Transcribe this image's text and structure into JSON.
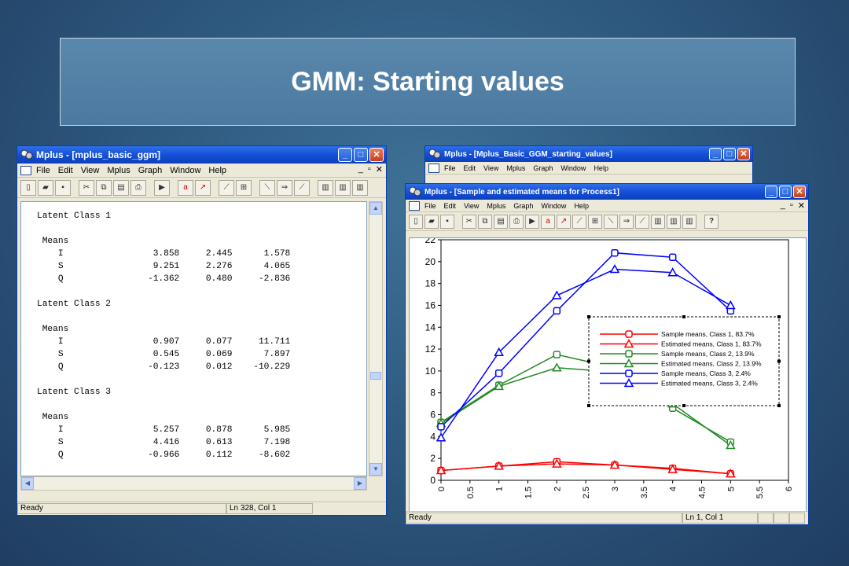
{
  "slide_title": "GMM: Starting values",
  "left_window": {
    "title": "Mplus - [mplus_basic_ggm]",
    "menu": [
      "File",
      "Edit",
      "View",
      "Mplus",
      "Graph",
      "Window",
      "Help"
    ],
    "status_left": "Ready",
    "status_pos": "Ln 328, Col 1",
    "output_lines": [
      "Latent Class 1",
      "",
      " Means",
      "    I                 3.858     2.445      1.578",
      "    S                 9.251     2.276      4.065",
      "    Q                -1.362     0.480     -2.836",
      "",
      "Latent Class 2",
      "",
      " Means",
      "    I                 0.907     0.077     11.711",
      "    S                 0.545     0.069      7.897",
      "    Q                -0.123     0.012    -10.229",
      "",
      "Latent Class 3",
      "",
      " Means",
      "    I                 5.257     0.878      5.985",
      "    S                 4.416     0.613      7.198",
      "    Q                -0.966     0.112     -8.602"
    ]
  },
  "back_window": {
    "title": "Mplus - [Mplus_Basic_GGM_starting_values]",
    "menu": [
      "File",
      "Edit",
      "View",
      "Mplus",
      "Graph",
      "Window",
      "Help"
    ]
  },
  "front_window": {
    "title": "Mplus - [Sample and estimated means for Process1]",
    "menu": [
      "File",
      "Edit",
      "View",
      "Mplus",
      "Graph",
      "Window",
      "Help"
    ],
    "status_left": "Ready",
    "status_pos": "Ln 1, Col 1"
  },
  "colors": {
    "red": "#ff0000",
    "green": "#228b22",
    "blue": "#0000ff"
  },
  "chart_data": {
    "type": "line",
    "x": [
      0,
      1,
      2,
      3,
      4,
      5
    ],
    "xlim": [
      0,
      6
    ],
    "ylim": [
      0,
      22
    ],
    "xticks": [
      "0",
      "0.5",
      "1",
      "1.5",
      "2",
      "2.5",
      "3",
      "3.5",
      "4",
      "4.5",
      "5",
      "5.5",
      "6"
    ],
    "yticks": [
      "0",
      "2",
      "4",
      "6",
      "8",
      "10",
      "12",
      "14",
      "16",
      "18",
      "20",
      "22"
    ],
    "legend_position": "right",
    "series": [
      {
        "name": "Sample means, Class 1, 83.7%",
        "color": "#ff0000",
        "marker": "square",
        "values": [
          0.9,
          1.3,
          1.7,
          1.4,
          1.1,
          0.6
        ]
      },
      {
        "name": "Estimated means, Class 1, 83.7%",
        "color": "#ff0000",
        "marker": "triangle",
        "values": [
          0.9,
          1.3,
          1.5,
          1.4,
          1.0,
          0.6
        ]
      },
      {
        "name": "Sample means, Class 2, 13.9%",
        "color": "#228b22",
        "marker": "square",
        "values": [
          5.3,
          8.7,
          11.5,
          10.3,
          6.6,
          3.5
        ]
      },
      {
        "name": "Estimated means, Class 2, 13.9%",
        "color": "#228b22",
        "marker": "triangle",
        "values": [
          5.2,
          8.6,
          10.3,
          9.9,
          7.0,
          3.2
        ]
      },
      {
        "name": "Sample means, Class 3, 2.4%",
        "color": "#0000ff",
        "marker": "square",
        "values": [
          4.9,
          9.8,
          15.5,
          20.8,
          20.4,
          15.5
        ]
      },
      {
        "name": "Estimated means, Class 3, 2.4%",
        "color": "#0000ff",
        "marker": "triangle",
        "values": [
          3.9,
          11.7,
          16.9,
          19.3,
          19.0,
          16.0
        ]
      }
    ]
  }
}
